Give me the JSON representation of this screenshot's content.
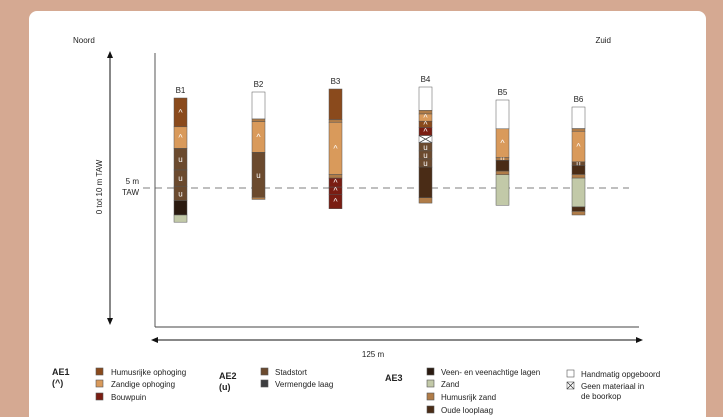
{
  "direction": {
    "left": "Noord",
    "right": "Zuid"
  },
  "vertical_axis": {
    "label": "0 tot 10 m TAW",
    "reference_label_line1": "5 m",
    "reference_label_line2": "TAW"
  },
  "horizontal_axis": {
    "label": "125 m"
  },
  "colors": {
    "humusrijke_ophoging": "#8a4a1c",
    "zandige_ophoging": "#d99a5b",
    "bouwpuin": "#7a1d12",
    "stadstort": "#6b4a2e",
    "vermengde_laag": "#3c3d3f",
    "veen": "#2a1a10",
    "zand": "#c2c9a8",
    "humusrijk_zand": "#b07c48",
    "oude_looplaag": "#4a2c16",
    "handmatig": "#ffffff",
    "geen_materiaal": "#ffffff"
  },
  "boreholes": [
    {
      "label": "B1",
      "layers": [
        {
          "t": "humusrijke_ophoging",
          "h": 1.6,
          "m": "^"
        },
        {
          "t": "zandige_ophoging",
          "h": 1.2,
          "m": "^"
        },
        {
          "t": "stadstort",
          "h": 1.2,
          "m": "u"
        },
        {
          "t": "stadstort",
          "h": 0.9,
          "m": "u"
        },
        {
          "t": "stadstort",
          "h": 0.8,
          "m": "u"
        },
        {
          "t": "veen",
          "h": 0.8
        },
        {
          "t": "zand",
          "h": 0.4
        }
      ]
    },
    {
      "label": "B2",
      "layers": [
        {
          "t": "handmatig",
          "h": 1.5
        },
        {
          "t": "humusrijk_zand",
          "h": 0.15
        },
        {
          "t": "zandige_ophoging",
          "h": 1.7,
          "m": "^"
        },
        {
          "t": "stadstort",
          "h": 2.5,
          "m": "u"
        },
        {
          "t": "humusrijk_zand",
          "h": 0.12
        }
      ]
    },
    {
      "label": "B3",
      "layers": [
        {
          "t": "humusrijke_ophoging",
          "h": 1.7
        },
        {
          "t": "humusrijk_zand",
          "h": 0.15
        },
        {
          "t": "zandige_ophoging",
          "h": 2.9,
          "m": "^"
        },
        {
          "t": "humusrijk_zand",
          "h": 0.2
        },
        {
          "t": "bouwpuin",
          "h": 0.5,
          "m": "^"
        },
        {
          "t": "bouwpuin",
          "h": 0.4,
          "m": "^"
        },
        {
          "t": "bouwpuin",
          "h": 0.8,
          "m": "^"
        }
      ]
    },
    {
      "label": "B4",
      "layers": [
        {
          "t": "handmatig",
          "h": 1.3
        },
        {
          "t": "humusrijk_zand",
          "h": 0.2
        },
        {
          "t": "zandige_ophoging",
          "h": 0.4,
          "m": "^"
        },
        {
          "t": "humusrijke_ophoging",
          "h": 0.35,
          "m": "^"
        },
        {
          "t": "bouwpuin",
          "h": 0.45,
          "m": "^"
        },
        {
          "t": "geen_materiaal",
          "h": 0.4
        },
        {
          "t": "stadstort",
          "h": 0.45,
          "m": "u"
        },
        {
          "t": "stadstort",
          "h": 0.45,
          "m": "u"
        },
        {
          "t": "stadstort",
          "h": 0.45,
          "m": "u"
        },
        {
          "t": "oude_looplaag",
          "h": 1.7
        },
        {
          "t": "humusrijk_zand",
          "h": 0.3
        }
      ]
    },
    {
      "label": "B5",
      "layers": [
        {
          "t": "handmatig",
          "h": 1.6
        },
        {
          "t": "zandige_ophoging",
          "h": 1.6,
          "m": "^"
        },
        {
          "t": "humusrijk_zand",
          "h": 0.15,
          "m": "u"
        },
        {
          "t": "oude_looplaag",
          "h": 0.6
        },
        {
          "t": "humusrijk_zand",
          "h": 0.2
        },
        {
          "t": "zand",
          "h": 1.7
        }
      ]
    },
    {
      "label": "B6",
      "layers": [
        {
          "t": "handmatig",
          "h": 1.2
        },
        {
          "t": "humusrijk_zand",
          "h": 0.15
        },
        {
          "t": "zandige_ophoging",
          "h": 1.7,
          "m": "^"
        },
        {
          "t": "stadstort",
          "h": 0.2,
          "m": "u"
        },
        {
          "t": "oude_looplaag",
          "h": 0.5
        },
        {
          "t": "humusrijk_zand",
          "h": 0.2
        },
        {
          "t": "zand",
          "h": 1.6
        },
        {
          "t": "oude_looplaag",
          "h": 0.25
        },
        {
          "t": "humusrijk_zand",
          "h": 0.2
        }
      ]
    }
  ],
  "legend": {
    "ae1": {
      "title": "AE1",
      "subtitle": "(^)",
      "items": [
        {
          "key": "humusrijke_ophoging",
          "label": "Humusrijke ophoging"
        },
        {
          "key": "zandige_ophoging",
          "label": "Zandige ophoging"
        },
        {
          "key": "bouwpuin",
          "label": "Bouwpuin"
        }
      ]
    },
    "ae2": {
      "title": "AE2",
      "subtitle": "(u)",
      "items": [
        {
          "key": "stadstort",
          "label": "Stadstort"
        },
        {
          "key": "vermengde_laag",
          "label": "Vermengde laag"
        }
      ]
    },
    "ae3": {
      "title": "AE3",
      "items": [
        {
          "key": "veen",
          "label": "Veen- en veenachtige lagen"
        },
        {
          "key": "zand",
          "label": "Zand"
        },
        {
          "key": "humusrijk_zand",
          "label": "Humusrijk zand"
        },
        {
          "key": "oude_looplaag",
          "label": "Oude looplaag"
        }
      ]
    },
    "other": {
      "items": [
        {
          "key": "handmatig",
          "label": "Handmatig opgeboord"
        },
        {
          "key": "geen_materiaal",
          "label": "Geen materiaal in",
          "label2": "de boorkop"
        }
      ]
    }
  }
}
